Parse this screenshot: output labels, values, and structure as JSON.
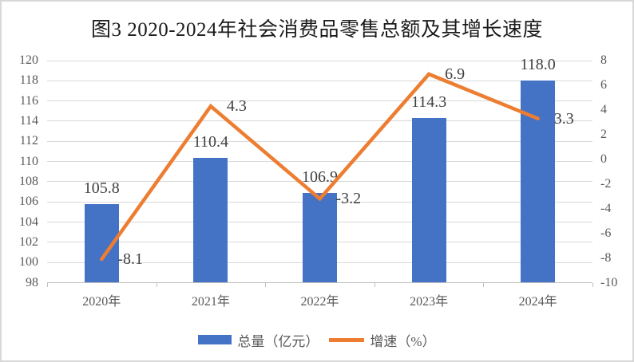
{
  "chart_data": {
    "type": "combo: bar + line (dual axis)",
    "title": "图3 2020-2024年社会消费品零售总额及其增长速度",
    "categories": [
      "2020年",
      "2021年",
      "2022年",
      "2023年",
      "2024年"
    ],
    "series": [
      {
        "name": "总量（亿元）",
        "type": "bar",
        "axis": "left",
        "values": [
          105.8,
          110.4,
          106.9,
          114.3,
          118.0
        ],
        "labels": [
          "105.8",
          "110.4",
          "106.9",
          "114.3",
          "118.0"
        ]
      },
      {
        "name": "增速（%）",
        "type": "line",
        "axis": "right",
        "values": [
          -8.1,
          4.3,
          -3.2,
          6.9,
          3.3
        ],
        "labels": [
          "-8.1",
          "4.3",
          "-3.2",
          "6.9",
          "3.3"
        ]
      }
    ],
    "left_axis": {
      "min": 98,
      "max": 120,
      "step": 2,
      "ticks": [
        98,
        100,
        102,
        104,
        106,
        108,
        110,
        112,
        114,
        116,
        118,
        120
      ]
    },
    "right_axis": {
      "min": -10,
      "max": 8,
      "step": 2,
      "ticks": [
        -10,
        -8,
        -6,
        -4,
        -2,
        0,
        2,
        4,
        6,
        8
      ]
    },
    "grid": true,
    "legend_position": "bottom"
  },
  "colors": {
    "bar": "#4472C4",
    "line": "#ED7D31",
    "grid": "#D9D9D9",
    "axis": "#BFBFBF",
    "axis_text": "#595959",
    "data_label_text": "#404040",
    "title_text": "#1A1A1A"
  }
}
